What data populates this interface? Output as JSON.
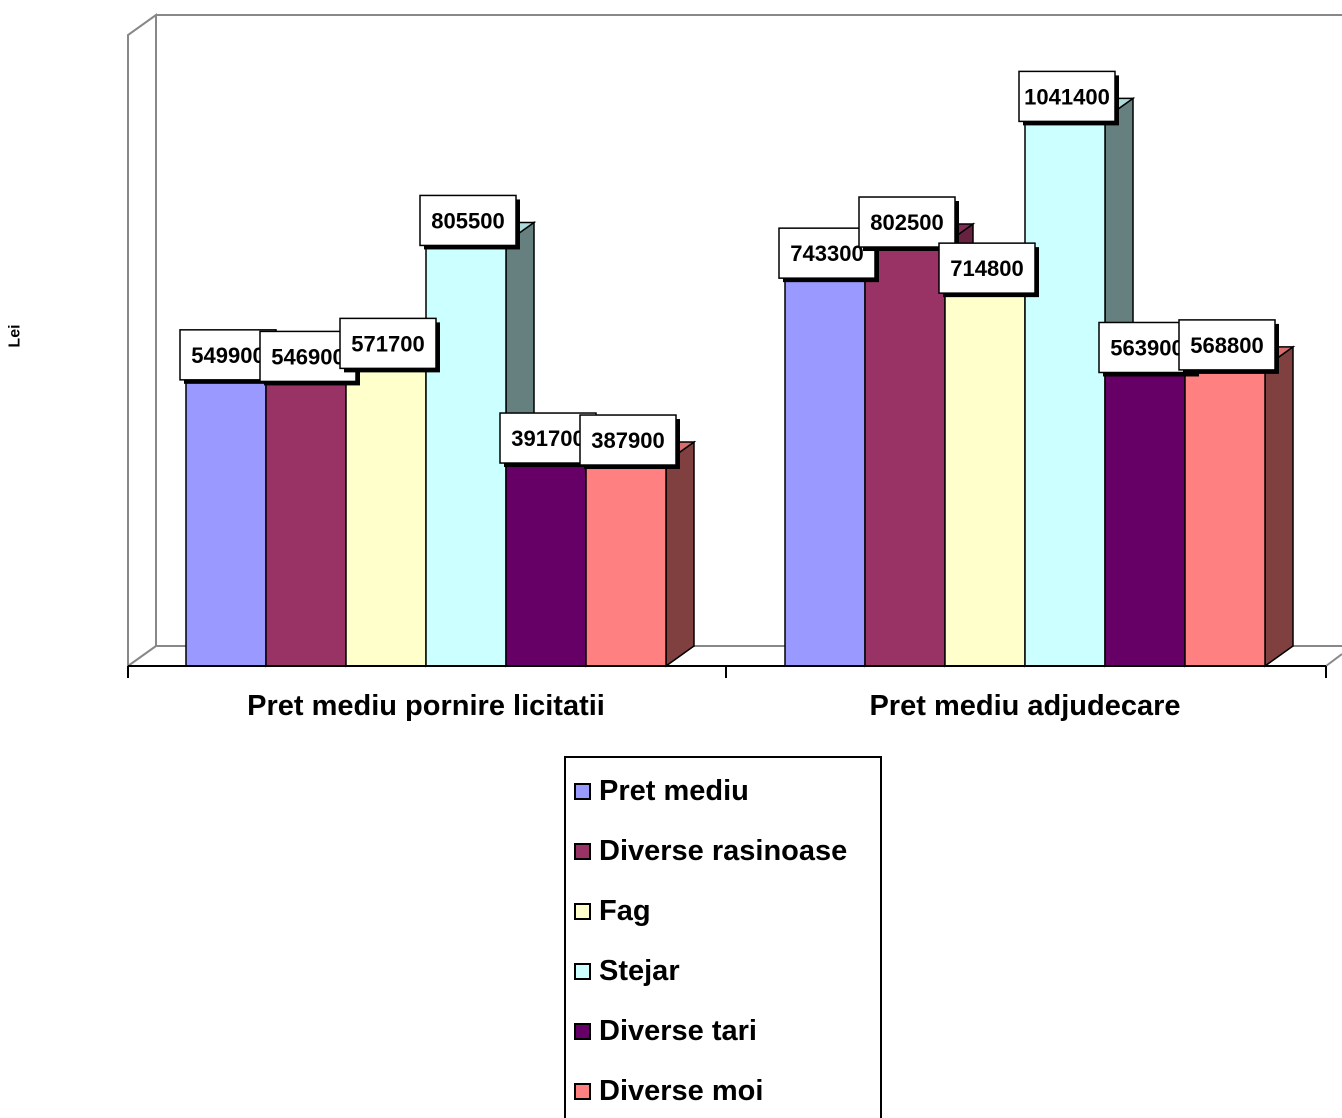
{
  "chart_data": {
    "type": "bar",
    "ylabel": "Lei",
    "categories": [
      "Pret mediu pornire licitatii",
      "Pret mediu adjudecare"
    ],
    "series": [
      {
        "name": "Pret mediu",
        "values": [
          549900,
          743300
        ],
        "color": "#9999FF"
      },
      {
        "name": "Diverse rasinoase",
        "values": [
          546900,
          802500
        ],
        "color": "#993366"
      },
      {
        "name": "Fag",
        "values": [
          571700,
          714800
        ],
        "color": "#FFFFCC"
      },
      {
        "name": "Stejar",
        "values": [
          805500,
          1041400
        ],
        "color": "#CCFFFF"
      },
      {
        "name": "Diverse tari",
        "values": [
          391700,
          563900
        ],
        "color": "#660066"
      },
      {
        "name": "Diverse moi",
        "values": [
          387900,
          568800
        ],
        "color": "#FF8080"
      }
    ],
    "ylim": [
      0,
      1200000
    ],
    "grid": false,
    "style": "3d-clustered",
    "legend_position": "bottom"
  }
}
